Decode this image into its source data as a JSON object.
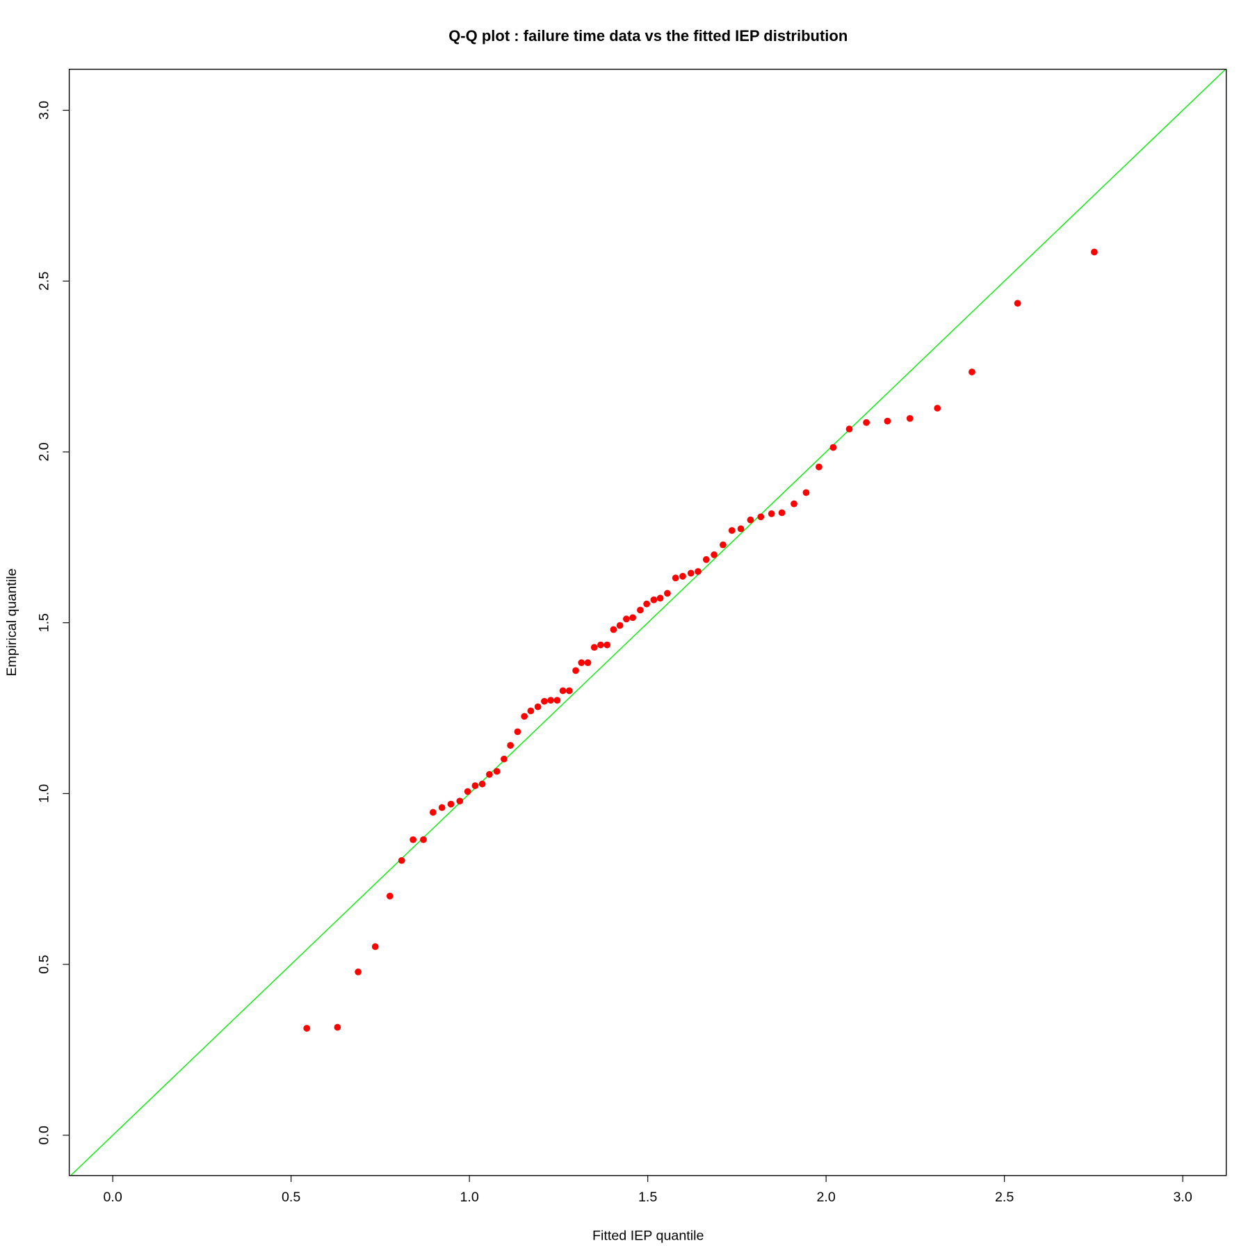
{
  "chart_data": {
    "type": "scatter",
    "title": "Q-Q plot : failure time data vs the fitted IEP distribution",
    "x_label": "Fitted IEP quantile",
    "y_label": "Empirical quantile",
    "color": "#ff0000",
    "reference_line_color": "#00ee00",
    "x": [
      0.544,
      0.63,
      0.688,
      0.736,
      0.777,
      0.81,
      0.842,
      0.871,
      0.898,
      0.923,
      0.948,
      0.973,
      0.995,
      1.016,
      1.036,
      1.056,
      1.077,
      1.097,
      1.115,
      1.135,
      1.154,
      1.172,
      1.192,
      1.21,
      1.228,
      1.246,
      1.262,
      1.28,
      1.298,
      1.314,
      1.332,
      1.35,
      1.368,
      1.386,
      1.404,
      1.422,
      1.44,
      1.458,
      1.479,
      1.497,
      1.517,
      1.535,
      1.555,
      1.578,
      1.598,
      1.621,
      1.641,
      1.664,
      1.686,
      1.711,
      1.736,
      1.761,
      1.788,
      1.817,
      1.847,
      1.876,
      1.91,
      1.944,
      1.98,
      2.02,
      2.065,
      2.113,
      2.172,
      2.235,
      2.312,
      2.409,
      2.537,
      2.752
    ],
    "values": [
      0.313,
      0.316,
      0.478,
      0.552,
      0.7,
      0.804,
      0.865,
      0.865,
      0.945,
      0.959,
      0.969,
      0.978,
      1.006,
      1.023,
      1.028,
      1.056,
      1.065,
      1.101,
      1.141,
      1.181,
      1.226,
      1.242,
      1.254,
      1.27,
      1.273,
      1.273,
      1.301,
      1.301,
      1.36,
      1.383,
      1.383,
      1.428,
      1.435,
      1.435,
      1.48,
      1.492,
      1.511,
      1.515,
      1.537,
      1.555,
      1.567,
      1.572,
      1.586,
      1.631,
      1.636,
      1.645,
      1.65,
      1.685,
      1.699,
      1.728,
      1.77,
      1.775,
      1.801,
      1.81,
      1.819,
      1.822,
      1.848,
      1.881,
      1.956,
      2.013,
      2.067,
      2.086,
      2.09,
      2.098,
      2.128,
      2.234,
      2.435,
      2.585
    ],
    "xlim": [
      -0.122,
      3.122
    ],
    "ylim": [
      -0.118,
      3.12
    ],
    "xticks": [
      {
        "value": 0,
        "label": "0.0"
      },
      {
        "value": 0.5,
        "label": "0.5"
      },
      {
        "value": 1,
        "label": "1.0"
      },
      {
        "value": 1.5,
        "label": "1.5"
      },
      {
        "value": 2,
        "label": "2.0"
      },
      {
        "value": 2.5,
        "label": "2.5"
      },
      {
        "value": 3,
        "label": "3.0"
      }
    ],
    "yticks": [
      {
        "value": 0,
        "label": "0.0"
      },
      {
        "value": 0.5,
        "label": "0.5"
      },
      {
        "value": 1,
        "label": "1.0"
      },
      {
        "value": 1.5,
        "label": "1.5"
      },
      {
        "value": 2,
        "label": "2.0"
      },
      {
        "value": 2.5,
        "label": "2.5"
      },
      {
        "value": 3,
        "label": "3.0"
      }
    ]
  }
}
